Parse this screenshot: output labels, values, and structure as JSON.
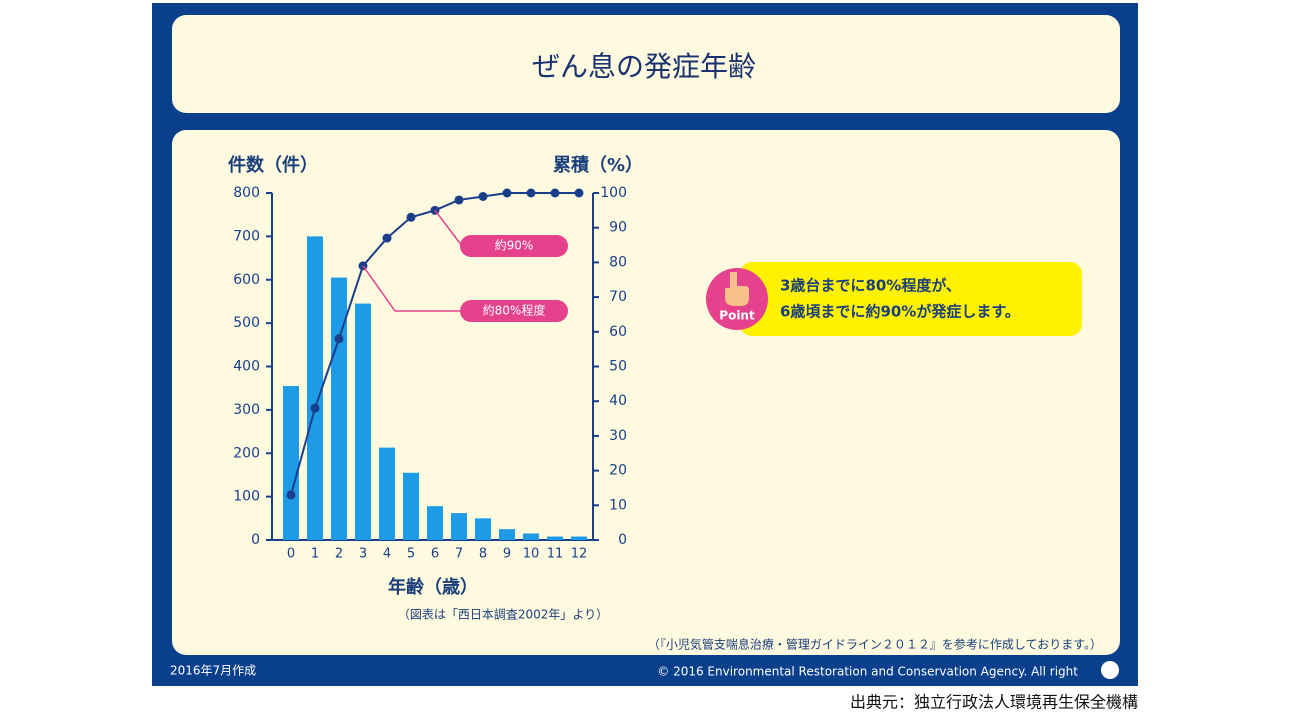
{
  "chart_data": {
    "type": "bar",
    "title": "ぜん息の発症年齢",
    "ylabel": "件数（件）",
    "y2label": "累積（%）",
    "xlabel": "年齢（歳）",
    "source_note": "（図表は「西日本調査2002年」より）",
    "categories": [
      "0",
      "1",
      "2",
      "3",
      "4",
      "5",
      "6",
      "7",
      "8",
      "9",
      "10",
      "11",
      "12"
    ],
    "series": [
      {
        "type": "bar",
        "color": "#1e9be6",
        "values": [
          355,
          700,
          605,
          545,
          213,
          155,
          78,
          62,
          50,
          25,
          15,
          8,
          8
        ]
      },
      {
        "type": "line",
        "axis": "y2",
        "color": "#1a3f8a",
        "values": [
          13,
          38,
          58,
          79,
          87,
          93,
          95,
          98,
          99,
          100,
          100,
          100,
          100
        ]
      }
    ],
    "ylim": [
      0,
      800
    ],
    "yticks": [
      0,
      100,
      200,
      300,
      400,
      500,
      600,
      700,
      800
    ],
    "y2lim": [
      0,
      100
    ],
    "y2ticks": [
      0,
      10,
      20,
      30,
      40,
      50,
      60,
      70,
      80,
      90,
      100
    ],
    "grid": false,
    "annotations": [
      {
        "text": "約90%",
        "color": "#e5418c"
      },
      {
        "text": "約80%程度",
        "color": "#e5418c"
      }
    ]
  },
  "point": {
    "label": "Point",
    "lines": [
      "3歳台までに80%程度が、",
      "6歳頃までに約90%が発症します。"
    ]
  },
  "footer": {
    "date": "2016年7月作成",
    "copyright": "© 2016 Environmental Restoration and Conservation Agency. All right",
    "reference": "（『小児気管支喘息治療・管理ガイドライン２０１２』を参考に作成しております。）"
  },
  "source": "出典元：独立行政法人環境再生保全機構"
}
